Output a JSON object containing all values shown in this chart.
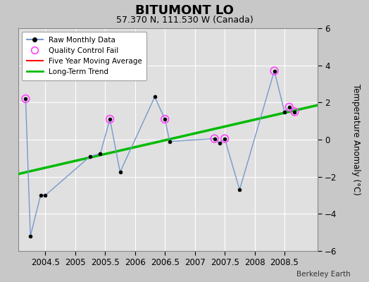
{
  "title": "BITUMONT LO",
  "subtitle": "57.370 N, 111.530 W (Canada)",
  "ylabel": "Temperature Anomaly (°C)",
  "xlim": [
    2004.05,
    2009.05
  ],
  "ylim": [
    -6,
    6
  ],
  "yticks": [
    -6,
    -4,
    -2,
    0,
    2,
    4,
    6
  ],
  "xticks": [
    2004.5,
    2005.0,
    2005.5,
    2006.0,
    2006.5,
    2007.0,
    2007.5,
    2008.0,
    2008.5
  ],
  "xtick_labels": [
    "2004.5",
    "2005",
    "2005.5",
    "2006",
    "2006.5",
    "2007",
    "2007.5",
    "2008",
    "2008.5"
  ],
  "background_color": "#c8c8c8",
  "plot_bg_color": "#e0e0e0",
  "grid_color": "#ffffff",
  "raw_x": [
    2004.17,
    2004.25,
    2004.42,
    2004.5,
    2005.25,
    2005.42,
    2005.58,
    2005.75,
    2006.33,
    2006.5,
    2006.58,
    2007.33,
    2007.42,
    2007.5,
    2007.75,
    2008.33,
    2008.5,
    2008.58,
    2008.67
  ],
  "raw_y": [
    2.2,
    -5.2,
    -3.0,
    -3.0,
    -0.9,
    -0.75,
    1.1,
    -1.75,
    2.3,
    1.1,
    -0.1,
    0.05,
    -0.2,
    0.05,
    -2.7,
    3.7,
    1.5,
    1.75,
    1.5
  ],
  "qc_x": [
    2004.17,
    2005.58,
    2006.5,
    2007.33,
    2007.5,
    2008.33,
    2008.58,
    2008.67
  ],
  "qc_y": [
    2.2,
    1.1,
    1.1,
    0.05,
    0.05,
    3.7,
    1.75,
    1.5
  ],
  "trend_x": [
    2004.05,
    2009.05
  ],
  "trend_y": [
    -1.85,
    1.85
  ],
  "raw_line_color": "#7799cc",
  "raw_marker_color": "#000000",
  "qc_color": "#ff44ff",
  "trend_color": "#00bb00",
  "mavg_color": "#ff0000",
  "watermark": "Berkeley Earth"
}
